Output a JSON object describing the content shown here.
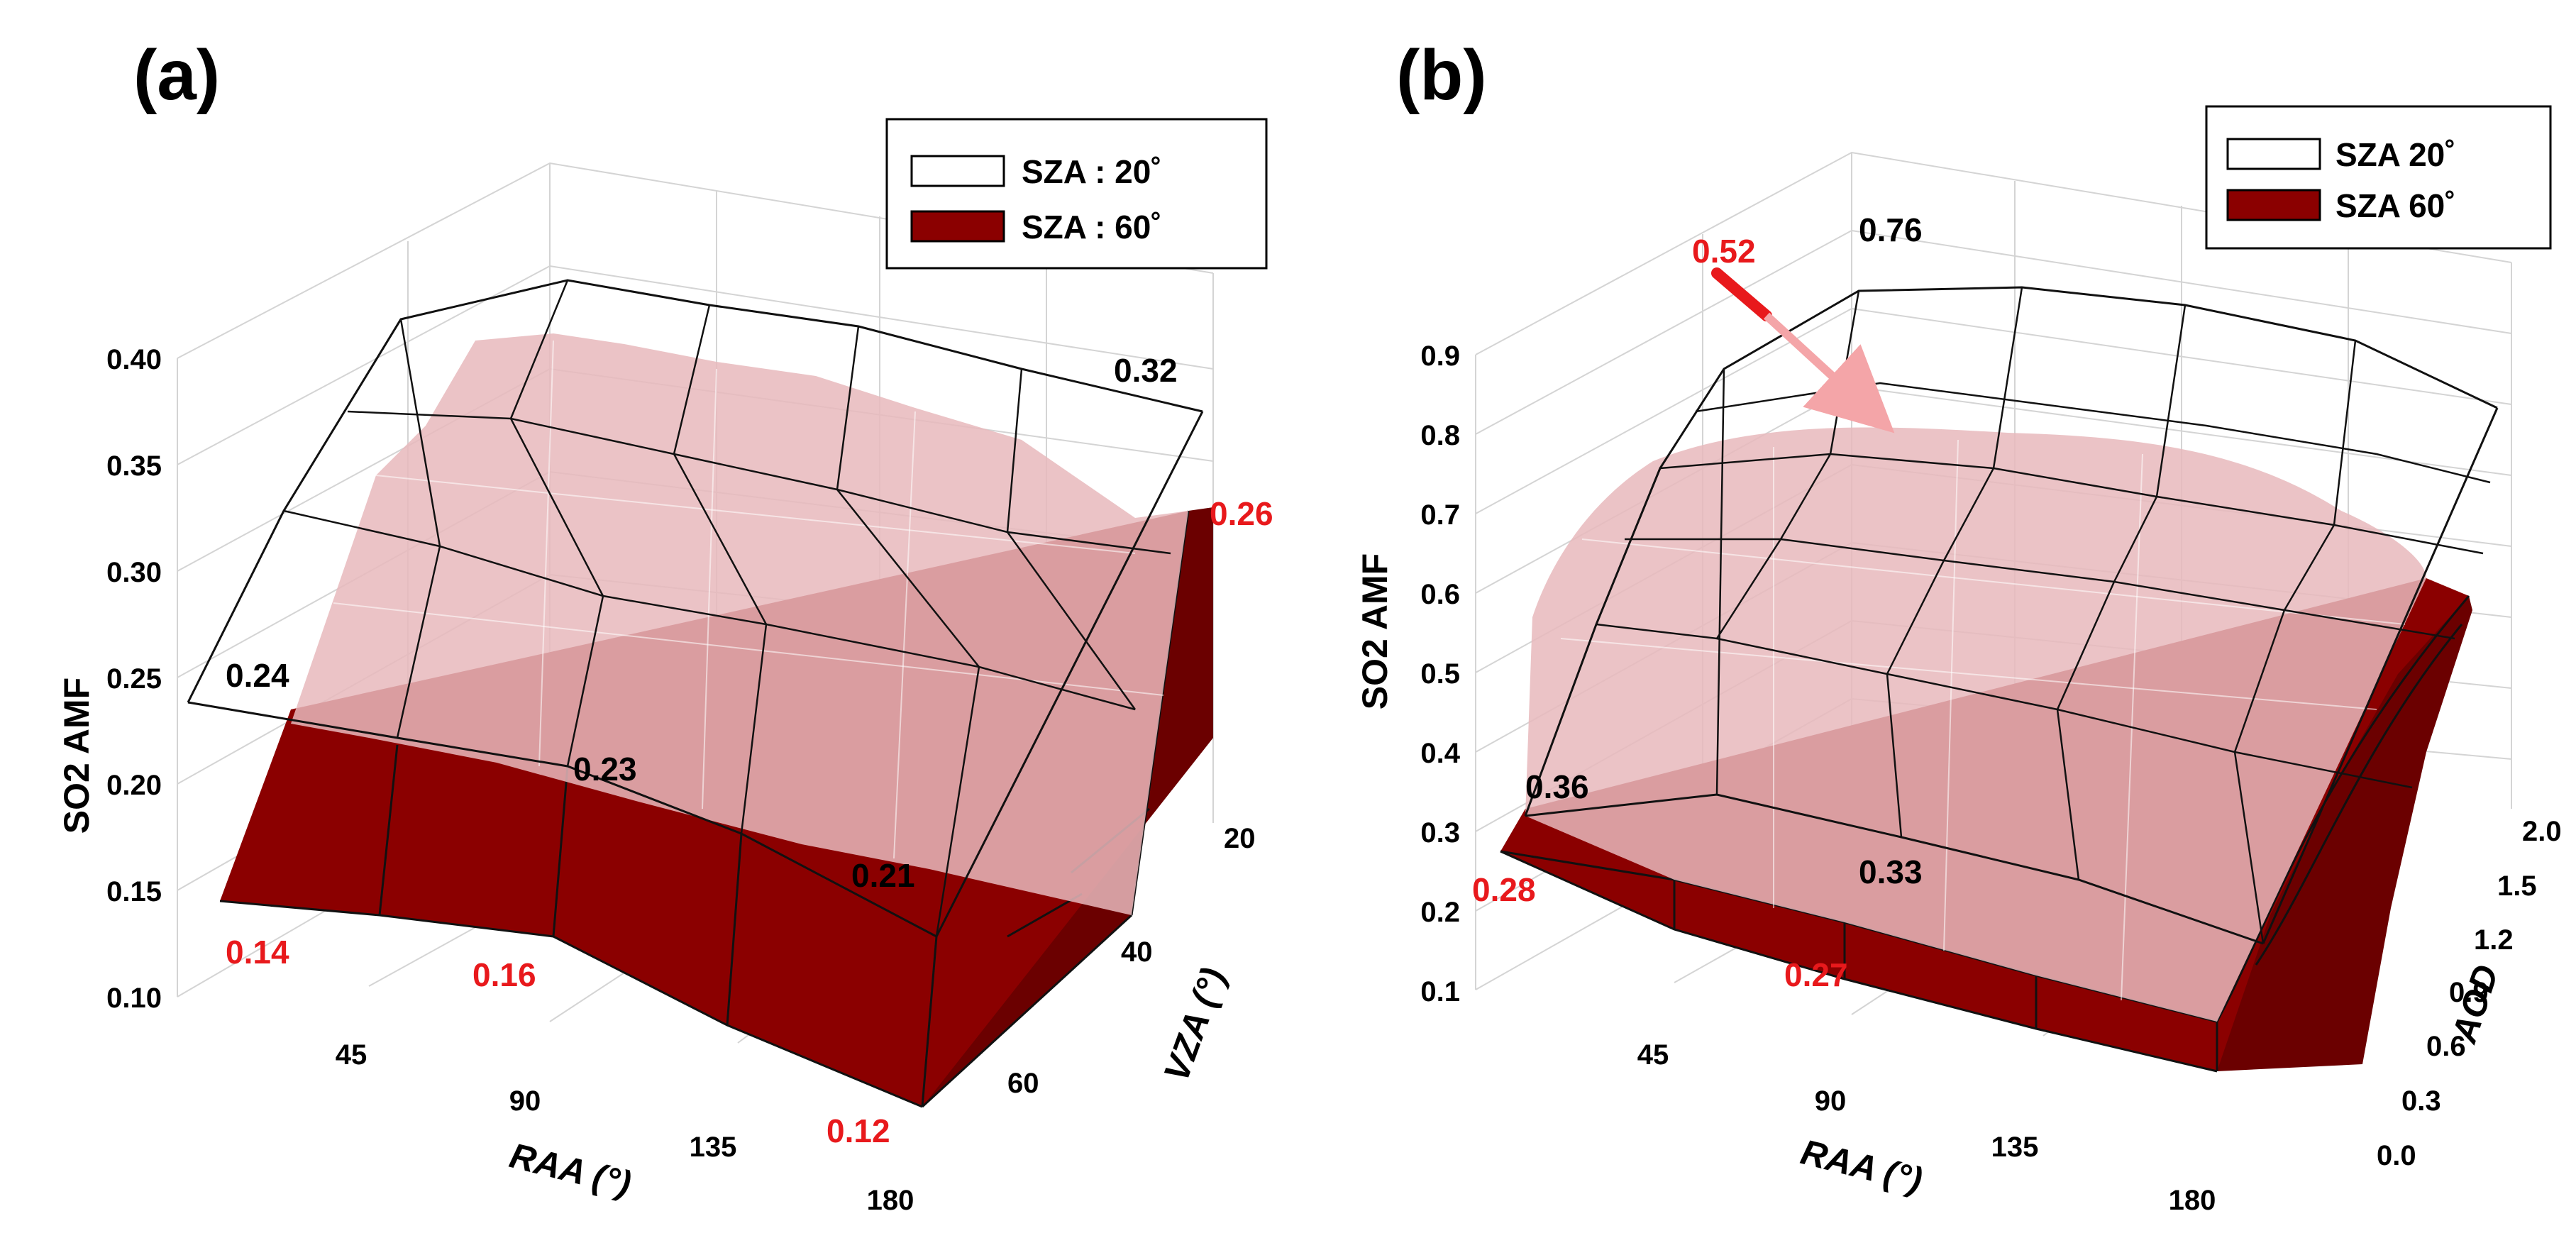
{
  "chart_data": [
    {
      "type": "surface3d",
      "panel_label": "(a)",
      "zlabel": "SO2 AMF",
      "xlabel": "RAA (°)",
      "ylabel": "VZA (°)",
      "x_ticks": [
        "45",
        "90",
        "135",
        "180"
      ],
      "y_ticks": [
        "20",
        "40",
        "60"
      ],
      "z_ticks": [
        "0.10",
        "0.15",
        "0.20",
        "0.25",
        "0.30",
        "0.35",
        "0.40"
      ],
      "zlim": [
        0.1,
        0.4
      ],
      "legend": [
        {
          "label": "SZA : 20˚",
          "color": "#ffffff"
        },
        {
          "label": "SZA : 60˚",
          "color": "#8b0000"
        }
      ],
      "series": [
        {
          "name": "SZA : 20˚",
          "front_edge_values_vs_RAA": [
            0.24,
            0.235,
            0.23,
            0.22,
            0.21
          ],
          "back_edge_values_vs_RAA": [
            0.32,
            0.325,
            0.33,
            0.33,
            0.32
          ]
        },
        {
          "name": "SZA : 60˚",
          "front_edge_values_vs_RAA": [
            0.14,
            0.15,
            0.16,
            0.14,
            0.12
          ],
          "back_edge_values_vs_RAA": [
            0.26,
            0.28,
            0.3,
            0.29,
            0.26
          ]
        }
      ],
      "annotations": [
        {
          "text": "0.24",
          "color": "#000000"
        },
        {
          "text": "0.32",
          "color": "#000000"
        },
        {
          "text": "0.26",
          "color": "#e8191c"
        },
        {
          "text": "0.23",
          "color": "#000000"
        },
        {
          "text": "0.21",
          "color": "#000000"
        },
        {
          "text": "0.14",
          "color": "#e8191c"
        },
        {
          "text": "0.16",
          "color": "#e8191c"
        },
        {
          "text": "0.12",
          "color": "#e8191c"
        }
      ]
    },
    {
      "type": "surface3d",
      "panel_label": "(b)",
      "zlabel": "SO2 AMF",
      "xlabel": "RAA (°)",
      "ylabel": "AOD",
      "x_ticks": [
        "45",
        "90",
        "135",
        "180"
      ],
      "y_ticks": [
        "0.0",
        "0.3",
        "0.6",
        "0.9",
        "1.2",
        "1.5",
        "2.0"
      ],
      "z_ticks": [
        "0.1",
        "0.2",
        "0.3",
        "0.4",
        "0.5",
        "0.6",
        "0.7",
        "0.8",
        "0.9"
      ],
      "zlim": [
        0.1,
        0.9
      ],
      "legend": [
        {
          "label": "SZA 20˚",
          "color": "#ffffff"
        },
        {
          "label": "SZA 60˚",
          "color": "#8b0000"
        }
      ],
      "series": [
        {
          "name": "SZA 20˚",
          "front_edge_values_vs_RAA": [
            0.36,
            0.35,
            0.33,
            0.33,
            0.34
          ],
          "back_edge_values_vs_RAA": [
            0.76,
            0.78,
            0.8,
            0.79,
            0.76
          ]
        },
        {
          "name": "SZA 60˚",
          "front_edge_values_vs_RAA": [
            0.28,
            0.28,
            0.27,
            0.27,
            0.28
          ],
          "back_edge_values_vs_RAA": [
            0.52,
            0.55,
            0.57,
            0.55,
            0.52
          ]
        }
      ],
      "annotations": [
        {
          "text": "0.52",
          "color": "#e8191c"
        },
        {
          "text": "0.76",
          "color": "#000000"
        },
        {
          "text": "0.36",
          "color": "#000000"
        },
        {
          "text": "0.28",
          "color": "#e8191c"
        },
        {
          "text": "0.33",
          "color": "#000000"
        },
        {
          "text": "0.27",
          "color": "#e8191c"
        }
      ]
    }
  ],
  "colors": {
    "surface_dark": "#8b0000",
    "surface_pink": "#e8b9bc",
    "annotation_red": "#e8191c",
    "arrow_red": "#e8191c",
    "arrow_pink": "#f4a5a8"
  }
}
